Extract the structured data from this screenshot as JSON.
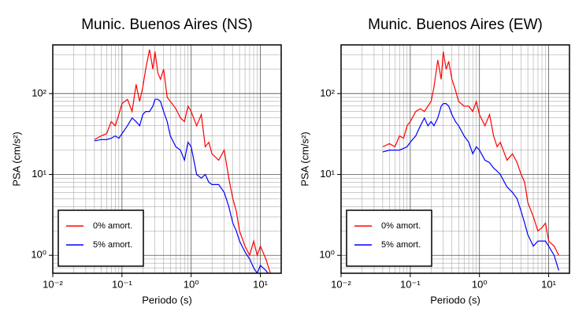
{
  "chart_data": [
    {
      "type": "line",
      "title": "Munic. Buenos Aires (NS)",
      "x_label": "Periodo (s)",
      "y_label": "PSA (cm/s²)",
      "x": [
        0.04,
        0.05,
        0.06,
        0.07,
        0.08,
        0.09,
        0.1,
        0.12,
        0.14,
        0.16,
        0.18,
        0.2,
        0.22,
        0.25,
        0.28,
        0.3,
        0.33,
        0.36,
        0.4,
        0.45,
        0.5,
        0.6,
        0.7,
        0.8,
        0.9,
        1.0,
        1.2,
        1.4,
        1.6,
        1.8,
        2.0,
        2.5,
        3.0,
        3.5,
        4.0,
        4.5,
        5,
        6,
        7,
        8,
        9,
        10,
        12,
        14
      ],
      "series": [
        {
          "name": "0% amort.",
          "color": "#ff0000",
          "values": [
            27,
            30,
            32,
            45,
            40,
            55,
            75,
            85,
            60,
            130,
            80,
            120,
            200,
            350,
            200,
            330,
            180,
            150,
            200,
            90,
            80,
            65,
            50,
            45,
            70,
            60,
            40,
            55,
            22,
            25,
            18,
            15,
            20,
            9,
            5,
            3.5,
            2,
            1.3,
            1.0,
            1.5,
            1.0,
            1.3,
            0.9,
            0.6
          ]
        },
        {
          "name": "5% amort.",
          "color": "#0000ff",
          "values": [
            26,
            27,
            27,
            28,
            30,
            28,
            32,
            40,
            50,
            45,
            40,
            55,
            60,
            60,
            70,
            85,
            85,
            80,
            60,
            45,
            30,
            22,
            20,
            15,
            25,
            22,
            10,
            9,
            10,
            8,
            7.5,
            7.5,
            6,
            4,
            2.5,
            2,
            1.5,
            1.1,
            0.9,
            0.7,
            0.6,
            0.75,
            0.65,
            0.55
          ]
        }
      ],
      "xlog": true,
      "ylog": true,
      "grid": true,
      "minor_grid": true,
      "legend": "lower left",
      "xlim": [
        0.01,
        20
      ],
      "ylim": [
        0.6,
        400
      ],
      "xticks": [
        {
          "value": 0.01,
          "label": "10⁻²"
        },
        {
          "value": 0.1,
          "label": "10⁻¹"
        },
        {
          "value": 1,
          "label": "10⁰"
        },
        {
          "value": 10,
          "label": "10¹"
        }
      ],
      "yticks": [
        {
          "value": 1,
          "label": "10⁰"
        },
        {
          "value": 10,
          "label": "10¹"
        },
        {
          "value": 100,
          "label": "10²"
        }
      ]
    },
    {
      "type": "line",
      "title": "Munic. Buenos Aires (EW)",
      "x_label": "Periodo (s)",
      "y_label": "PSA (cm/s²)",
      "x": [
        0.04,
        0.05,
        0.06,
        0.07,
        0.08,
        0.09,
        0.1,
        0.12,
        0.14,
        0.16,
        0.18,
        0.2,
        0.22,
        0.25,
        0.28,
        0.3,
        0.33,
        0.36,
        0.4,
        0.45,
        0.5,
        0.6,
        0.7,
        0.8,
        0.9,
        1.0,
        1.2,
        1.4,
        1.6,
        1.8,
        2.0,
        2.5,
        3.0,
        3.5,
        4.0,
        4.5,
        5,
        6,
        7,
        8,
        9,
        10,
        12,
        14
      ],
      "series": [
        {
          "name": "0% amort.",
          "color": "#ff0000",
          "values": [
            22,
            24,
            22,
            30,
            28,
            40,
            45,
            60,
            65,
            60,
            70,
            80,
            120,
            260,
            150,
            330,
            200,
            250,
            150,
            110,
            80,
            70,
            70,
            60,
            80,
            55,
            40,
            55,
            30,
            22,
            25,
            15,
            18,
            14,
            10,
            8,
            4.5,
            3,
            2,
            2.2,
            2.5,
            1.5,
            1.3,
            1.0
          ]
        },
        {
          "name": "5% amort.",
          "color": "#0000ff",
          "values": [
            19,
            20,
            20,
            20,
            21,
            22,
            25,
            30,
            40,
            50,
            40,
            45,
            40,
            50,
            70,
            75,
            75,
            70,
            55,
            45,
            40,
            30,
            25,
            18,
            22,
            20,
            15,
            14,
            12,
            11,
            10,
            7,
            6,
            5,
            3.5,
            2.5,
            1.8,
            1.3,
            1.5,
            1.5,
            1.5,
            1.3,
            1.0,
            0.65
          ]
        }
      ],
      "xlog": true,
      "ylog": true,
      "grid": true,
      "minor_grid": true,
      "legend": "lower left",
      "xlim": [
        0.01,
        20
      ],
      "ylim": [
        0.6,
        400
      ],
      "xticks": [
        {
          "value": 0.01,
          "label": "10⁻²"
        },
        {
          "value": 0.1,
          "label": "10⁻¹"
        },
        {
          "value": 1,
          "label": "10⁰"
        },
        {
          "value": 10,
          "label": "10¹"
        }
      ],
      "yticks": [
        {
          "value": 1,
          "label": "10⁰"
        },
        {
          "value": 10,
          "label": "10¹"
        },
        {
          "value": 100,
          "label": "10²"
        }
      ]
    }
  ]
}
